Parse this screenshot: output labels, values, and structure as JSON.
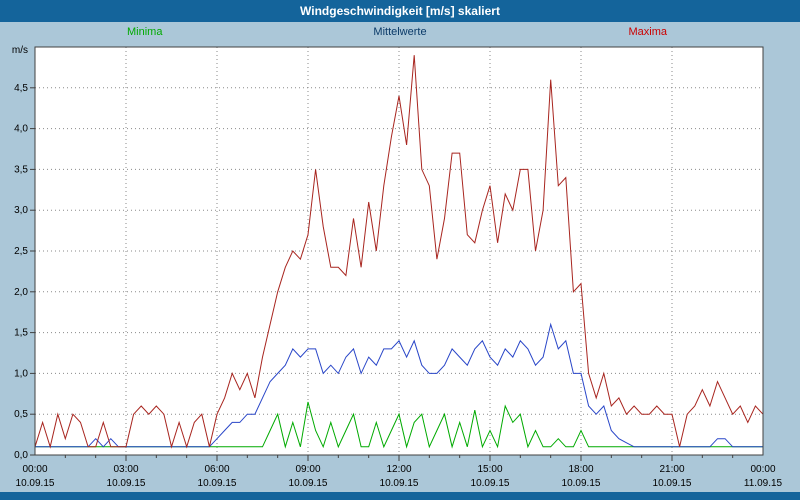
{
  "window": {
    "title": "Windgeschwindigkeit [m/s] skaliert"
  },
  "legend": {
    "minima": "Minima",
    "mittelwerte": "Mittelwerte",
    "maxima": "Maxima"
  },
  "colors": {
    "titlebar": "#14649B",
    "titlebar_text": "#FFFFFF",
    "background": "#ABC7D8",
    "plot_background": "#FFFFFF",
    "grid": "#8A8A8A",
    "frame": "#404040",
    "axis_text": "#000000",
    "minima_line": "#00AA00",
    "minima_text": "#00AA00",
    "mittelwerte_line": "#2946C8",
    "mittelwerte_text": "#0A3A68",
    "maxima_line": "#A8251F",
    "maxima_text": "#CC0000"
  },
  "chart_data": {
    "type": "line",
    "title": "Windgeschwindigkeit [m/s] skaliert",
    "ylabel": "m/s",
    "ylim": [
      0,
      5
    ],
    "y_tick_step": 0.5,
    "y_tick_labels": [
      "0,0",
      "0,5",
      "1,0",
      "1,5",
      "2,0",
      "2,5",
      "3,0",
      "3,5",
      "4,0",
      "4,5"
    ],
    "x_hours_range": [
      0,
      24
    ],
    "x_step_hours": 0.25,
    "x_tick_hours": [
      0,
      3,
      6,
      9,
      12,
      15,
      18,
      21,
      24
    ],
    "x_tick_labels": [
      "00:00",
      "03:00",
      "06:00",
      "09:00",
      "12:00",
      "15:00",
      "18:00",
      "21:00",
      "00:00"
    ],
    "x_tick_dates": [
      "10.09.15",
      "10.09.15",
      "10.09.15",
      "10.09.15",
      "10.09.15",
      "10.09.15",
      "10.09.15",
      "10.09.15",
      "11.09.15"
    ],
    "grid": "dotted",
    "legend_position": "top",
    "series": [
      {
        "name": "Minima",
        "color": "#00AA00",
        "values": [
          0.1,
          0.1,
          0.1,
          0.1,
          0.1,
          0.1,
          0.1,
          0.1,
          0.1,
          0.1,
          0.1,
          0.1,
          0.1,
          0.1,
          0.1,
          0.1,
          0.1,
          0.1,
          0.1,
          0.1,
          0.1,
          0.1,
          0.1,
          0.1,
          0.1,
          0.1,
          0.1,
          0.1,
          0.1,
          0.1,
          0.1,
          0.3,
          0.5,
          0.1,
          0.4,
          0.1,
          0.65,
          0.3,
          0.1,
          0.4,
          0.1,
          0.3,
          0.5,
          0.1,
          0.1,
          0.4,
          0.1,
          0.3,
          0.5,
          0.1,
          0.4,
          0.5,
          0.1,
          0.3,
          0.5,
          0.1,
          0.4,
          0.1,
          0.55,
          0.1,
          0.3,
          0.1,
          0.6,
          0.4,
          0.5,
          0.1,
          0.3,
          0.1,
          0.1,
          0.2,
          0.1,
          0.1,
          0.3,
          0.1,
          0.1,
          0.1,
          0.1,
          0.1,
          0.1,
          0.1,
          0.1,
          0.1,
          0.1,
          0.1,
          0.1,
          0.1,
          0.1,
          0.1,
          0.1,
          0.1,
          0.1,
          0.1,
          0.1,
          0.1,
          0.1,
          0.1,
          0.1
        ]
      },
      {
        "name": "Mittelwerte",
        "color": "#2946C8",
        "values": [
          0.1,
          0.1,
          0.1,
          0.1,
          0.1,
          0.1,
          0.1,
          0.1,
          0.2,
          0.1,
          0.2,
          0.1,
          0.1,
          0.1,
          0.1,
          0.1,
          0.1,
          0.1,
          0.1,
          0.1,
          0.1,
          0.1,
          0.1,
          0.1,
          0.2,
          0.3,
          0.4,
          0.4,
          0.5,
          0.5,
          0.7,
          0.9,
          1.0,
          1.1,
          1.3,
          1.2,
          1.3,
          1.3,
          1.0,
          1.1,
          1.0,
          1.2,
          1.3,
          1.0,
          1.2,
          1.1,
          1.3,
          1.3,
          1.4,
          1.2,
          1.4,
          1.1,
          1.0,
          1.0,
          1.1,
          1.3,
          1.2,
          1.1,
          1.3,
          1.4,
          1.2,
          1.1,
          1.3,
          1.2,
          1.4,
          1.3,
          1.1,
          1.2,
          1.6,
          1.3,
          1.4,
          1.0,
          1.0,
          0.6,
          0.5,
          0.6,
          0.3,
          0.2,
          0.15,
          0.1,
          0.1,
          0.1,
          0.1,
          0.1,
          0.1,
          0.1,
          0.1,
          0.1,
          0.1,
          0.1,
          0.2,
          0.2,
          0.1,
          0.1,
          0.1,
          0.1,
          0.1
        ]
      },
      {
        "name": "Maxima",
        "color": "#A8251F",
        "values": [
          0.1,
          0.4,
          0.1,
          0.5,
          0.2,
          0.5,
          0.4,
          0.1,
          0.1,
          0.4,
          0.1,
          0.1,
          0.1,
          0.5,
          0.6,
          0.5,
          0.6,
          0.5,
          0.1,
          0.4,
          0.1,
          0.4,
          0.5,
          0.1,
          0.5,
          0.7,
          1.0,
          0.8,
          1.0,
          0.7,
          1.2,
          1.6,
          2.0,
          2.3,
          2.5,
          2.4,
          2.7,
          3.5,
          2.8,
          2.3,
          2.3,
          2.2,
          2.9,
          2.3,
          3.1,
          2.5,
          3.3,
          3.9,
          4.4,
          3.8,
          4.9,
          3.5,
          3.3,
          2.4,
          2.9,
          3.7,
          3.7,
          2.7,
          2.6,
          3.0,
          3.3,
          2.6,
          3.2,
          3.0,
          3.5,
          3.5,
          2.5,
          3.0,
          4.6,
          3.3,
          3.4,
          2.0,
          2.1,
          1.0,
          0.7,
          1.0,
          0.6,
          0.7,
          0.5,
          0.6,
          0.5,
          0.5,
          0.6,
          0.5,
          0.5,
          0.1,
          0.5,
          0.6,
          0.8,
          0.6,
          0.9,
          0.7,
          0.5,
          0.6,
          0.4,
          0.6,
          0.5
        ]
      }
    ]
  }
}
